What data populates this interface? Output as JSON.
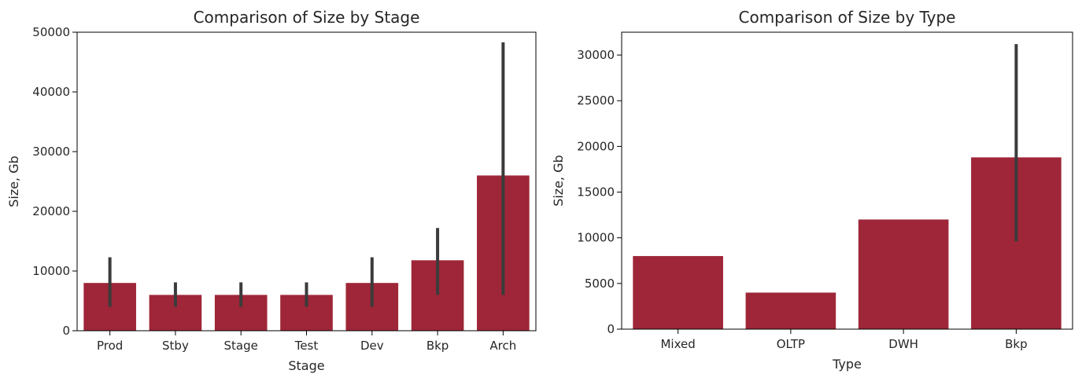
{
  "chart_data": [
    {
      "type": "bar",
      "title": "Comparison of Size by Stage",
      "xlabel": "Stage",
      "ylabel": "Size, Gb",
      "categories": [
        "Prod",
        "Stby",
        "Stage",
        "Test",
        "Dev",
        "Bkp",
        "Arch"
      ],
      "values": [
        8000,
        6000,
        6000,
        6000,
        8000,
        11800,
        26000
      ],
      "error_bars": [
        [
          4000,
          12300
        ],
        [
          4000,
          8100
        ],
        [
          4000,
          8100
        ],
        [
          4000,
          8100
        ],
        [
          4000,
          12300
        ],
        [
          6000,
          17200
        ],
        [
          6000,
          48300
        ]
      ],
      "ylim": [
        0,
        50000
      ],
      "yticks": [
        0,
        10000,
        20000,
        30000,
        40000,
        50000
      ],
      "bar_color": "#9e2638",
      "errorbar_color": "#3b3b3b",
      "grid": false
    },
    {
      "type": "bar",
      "title": "Comparison of Size by Type",
      "xlabel": "Type",
      "ylabel": "Size, Gb",
      "categories": [
        "Mixed",
        "OLTP",
        "DWH",
        "Bkp"
      ],
      "values": [
        8000,
        4000,
        12000,
        18800
      ],
      "error_bars": [
        null,
        null,
        null,
        [
          9600,
          31200
        ]
      ],
      "ylim": [
        0,
        32500
      ],
      "yticks": [
        0,
        5000,
        10000,
        15000,
        20000,
        25000,
        30000
      ],
      "bar_color": "#9e2638",
      "errorbar_color": "#3b3b3b",
      "grid": false
    }
  ]
}
